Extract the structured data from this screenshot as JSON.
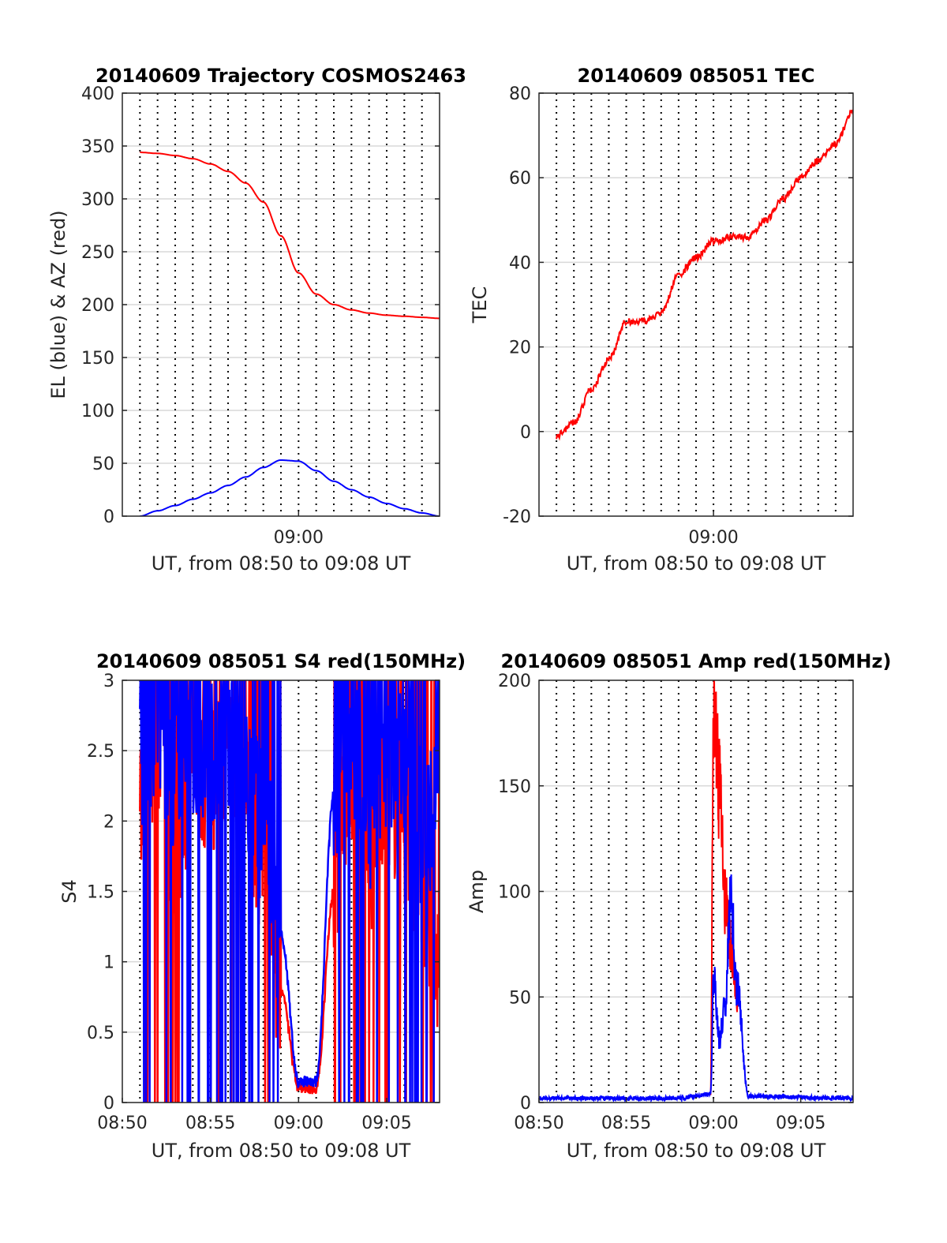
{
  "figure": {
    "colors": {
      "el": "#0000ff",
      "az": "#ff0000",
      "grid": "#d9d9d9",
      "axis": "#262626"
    }
  },
  "chart_data": [
    {
      "type": "line",
      "title": "20140609 Trajectory COSMOS2463",
      "xlabel": "UT, from 08:50 to 09:08 UT",
      "ylabel": "EL (blue) & AZ (red)",
      "xlim": [
        "08:50",
        "09:08"
      ],
      "ylim": [
        0,
        400
      ],
      "yticks": [
        0,
        50,
        100,
        150,
        200,
        250,
        300,
        350,
        400
      ],
      "xtick_labels": [
        "09:00"
      ],
      "grid": true,
      "series": [
        {
          "color": "#ff0000",
          "x": [
            "08:51",
            "08:52",
            "08:53",
            "08:54",
            "08:55",
            "08:56",
            "08:57",
            "08:58",
            "08:59",
            "09:00",
            "09:01",
            "09:02",
            "09:03",
            "09:04",
            "09:05",
            "09:06",
            "09:07",
            "09:08"
          ],
          "values": [
            344,
            343,
            341,
            338,
            333,
            326,
            315,
            297,
            265,
            230,
            210,
            200,
            195,
            192,
            190,
            189,
            188,
            187
          ]
        },
        {
          "color": "#0000ff",
          "x": [
            "08:51",
            "08:52",
            "08:53",
            "08:54",
            "08:55",
            "08:56",
            "08:57",
            "08:58",
            "08:59",
            "09:00",
            "09:01",
            "09:02",
            "09:03",
            "09:04",
            "09:05",
            "09:06",
            "09:07",
            "09:08"
          ],
          "values": [
            0,
            5,
            10,
            16,
            22,
            29,
            37,
            46,
            53,
            52,
            43,
            33,
            25,
            18,
            12,
            7,
            3,
            0
          ]
        }
      ]
    },
    {
      "type": "line",
      "title": "20140609 085051 TEC",
      "xlabel": "UT, from 08:50 to 09:08 UT",
      "ylabel": "TEC",
      "xlim": [
        "08:50",
        "09:08"
      ],
      "ylim": [
        -20,
        80
      ],
      "yticks": [
        -20,
        0,
        20,
        40,
        60,
        80
      ],
      "xtick_labels": [
        "09:00"
      ],
      "grid": true,
      "series": [
        {
          "color": "#ff0000",
          "x": [
            "08:51",
            "08:52",
            "08:53",
            "08:54",
            "08:55",
            "08:56",
            "08:57",
            "08:58",
            "08:59",
            "09:00",
            "09:01",
            "09:02",
            "09:03",
            "09:04",
            "09:05",
            "09:06",
            "09:07",
            "09:08"
          ],
          "values": [
            -1,
            2,
            10,
            17,
            26,
            26,
            28,
            37,
            41,
            45,
            46,
            46,
            50,
            55,
            60,
            64,
            68,
            76
          ]
        }
      ]
    },
    {
      "type": "line",
      "title": "20140609 085051 S4 red(150MHz)",
      "xlabel": "UT, from 08:50 to 09:08 UT",
      "ylabel": "S4",
      "xlim": [
        "08:50",
        "09:08"
      ],
      "ylim": [
        0,
        3
      ],
      "yticks": [
        0,
        0.5,
        1,
        1.5,
        2,
        2.5,
        3
      ],
      "xtick_labels": [
        "08:50",
        "08:55",
        "09:00",
        "09:05"
      ],
      "grid": true,
      "series": [
        {
          "color": "#ff0000",
          "x": [
            "08:51",
            "08:52",
            "08:53",
            "08:54",
            "08:55",
            "08:56",
            "08:57",
            "08:58",
            "08:59",
            "09:00",
            "09:01",
            "09:02",
            "09:03",
            "09:04",
            "09:05",
            "09:06",
            "09:07",
            "09:08"
          ],
          "values": [
            2.2,
            2.6,
            1.9,
            2.4,
            2.3,
            2.5,
            2.2,
            1.8,
            0.8,
            0.1,
            0.1,
            1.5,
            2.4,
            1.8,
            2.2,
            2.0,
            1.5,
            1.0
          ]
        },
        {
          "color": "#0000ff",
          "x": [
            "08:51",
            "08:52",
            "08:53",
            "08:54",
            "08:55",
            "08:56",
            "08:57",
            "08:58",
            "08:59",
            "09:00",
            "09:01",
            "09:02",
            "09:03",
            "09:04",
            "09:05",
            "09:06",
            "09:07",
            "09:08"
          ],
          "values": [
            2.5,
            2.7,
            2.4,
            2.6,
            2.5,
            2.6,
            2.4,
            2.0,
            1.2,
            0.15,
            0.15,
            2.2,
            2.6,
            2.1,
            2.5,
            2.3,
            2.0,
            2.2
          ]
        }
      ]
    },
    {
      "type": "line",
      "title": "20140609 085051 Amp red(150MHz)",
      "xlabel": "UT, from 08:50 to 09:08 UT",
      "ylabel": "Amp",
      "xlim": [
        "08:50",
        "09:08"
      ],
      "ylim": [
        0,
        200
      ],
      "yticks": [
        0,
        50,
        100,
        150,
        200
      ],
      "xtick_labels": [
        "08:50",
        "08:55",
        "09:00",
        "09:05"
      ],
      "grid": true,
      "series": [
        {
          "color": "#ff0000",
          "x": [
            "08:50",
            "08:58",
            "08:59:50",
            "09:00:00",
            "09:00:20",
            "09:00:40",
            "09:01:00",
            "09:01:20",
            "09:02",
            "09:08"
          ],
          "values": [
            0,
            0,
            2,
            185,
            150,
            95,
            75,
            52,
            0,
            0
          ]
        },
        {
          "color": "#0000ff",
          "x": [
            "08:50",
            "08:58",
            "08:59:50",
            "09:00:00",
            "09:00:20",
            "09:00:40",
            "09:01:00",
            "09:01:20",
            "09:02",
            "09:08"
          ],
          "values": [
            1,
            1,
            3,
            60,
            30,
            45,
            95,
            55,
            2,
            1
          ]
        }
      ]
    }
  ]
}
